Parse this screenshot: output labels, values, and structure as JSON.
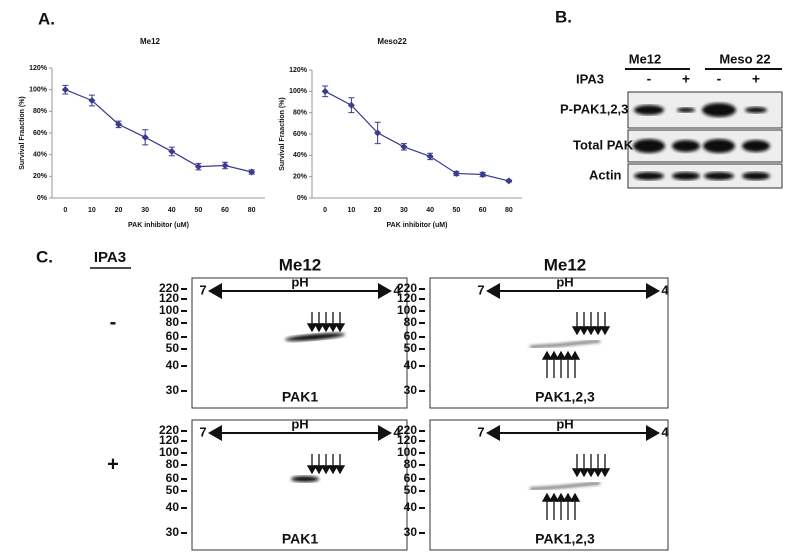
{
  "chart_data": [
    {
      "type": "line",
      "title": "Me12",
      "x_label": "PAK inhibitor (uM)",
      "y_label": "Survival Fraaction (%)",
      "categories": [
        "0",
        "10",
        "20",
        "30",
        "40",
        "50",
        "60",
        "80"
      ],
      "series": [
        {
          "color": "#3b3b8f",
          "values": [
            100,
            90,
            68,
            56,
            43,
            29,
            30,
            24
          ],
          "errors": [
            4,
            5,
            3,
            7,
            4,
            3,
            3,
            2
          ]
        }
      ],
      "ylim": [
        0,
        120
      ],
      "yticks": [
        {
          "value": 0,
          "label": "0%"
        },
        {
          "value": 20,
          "label": "20%"
        },
        {
          "value": 40,
          "label": "40%"
        },
        {
          "value": 60,
          "label": "60%"
        },
        {
          "value": 80,
          "label": "80%"
        },
        {
          "value": 100,
          "label": "100%"
        },
        {
          "value": 120,
          "label": "120%"
        }
      ]
    },
    {
      "type": "line",
      "title": "Meso22",
      "x_label": "PAK inhibitor (uM)",
      "y_label": "Survival Fraaction (%)",
      "categories": [
        "0",
        "10",
        "20",
        "30",
        "40",
        "50",
        "60",
        "80"
      ],
      "series": [
        {
          "color": "#3b3b8f",
          "values": [
            100,
            87,
            61,
            48,
            39,
            23,
            22,
            16
          ],
          "errors": [
            5,
            7,
            10,
            3,
            3,
            2,
            2,
            1
          ]
        }
      ],
      "ylim": [
        0,
        120
      ],
      "yticks": [
        {
          "value": 0,
          "label": "0%"
        },
        {
          "value": 20,
          "label": "20%"
        },
        {
          "value": 40,
          "label": "40%"
        },
        {
          "value": 60,
          "label": "60%"
        },
        {
          "value": 80,
          "label": "80%"
        },
        {
          "value": 100,
          "label": "100%"
        },
        {
          "value": 120,
          "label": "120%"
        }
      ]
    }
  ],
  "panel_a": {
    "label": "A."
  },
  "panel_b": {
    "label": "B.",
    "cell_lines": [
      "Me12",
      "Meso 22"
    ],
    "treatment_label": "IPA3",
    "treatments": [
      "-",
      "+",
      "-",
      "+"
    ],
    "rows": [
      "P-PAK1,2,3",
      "Total PAK",
      "Actin"
    ]
  },
  "panel_c": {
    "label": "C.",
    "treatment_label": "IPA3",
    "conditions": [
      "-",
      "+"
    ],
    "blots": [
      {
        "title": "Me12",
        "protein": "PAK1"
      },
      {
        "title": "Me12",
        "protein": "PAK1,2,3"
      }
    ],
    "markers": [
      220,
      120,
      100,
      80,
      60,
      50,
      40,
      30
    ],
    "ph": {
      "label": "pH",
      "left": 7,
      "right": 4
    }
  }
}
